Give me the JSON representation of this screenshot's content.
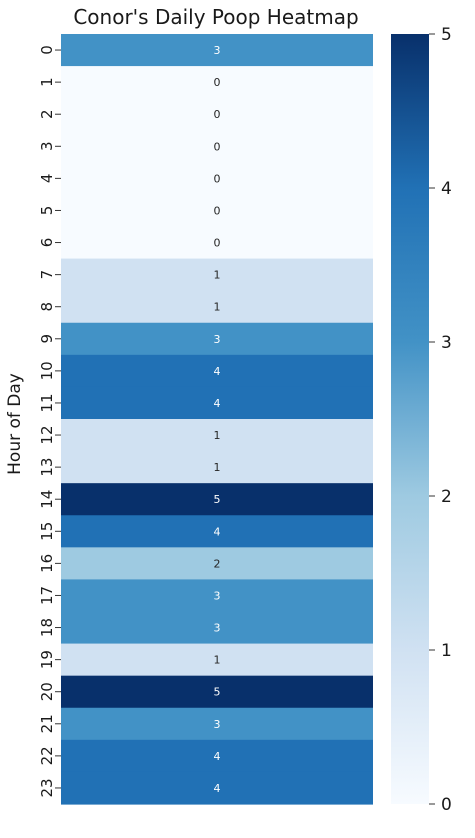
{
  "chart_data": {
    "type": "heatmap",
    "title": "Conor's Daily Poop Heatmap",
    "ylabel": "Hour of Day",
    "xlabel": "",
    "categories": [
      "0",
      "1",
      "2",
      "3",
      "4",
      "5",
      "6",
      "7",
      "8",
      "9",
      "10",
      "11",
      "12",
      "13",
      "14",
      "15",
      "16",
      "17",
      "18",
      "19",
      "20",
      "21",
      "22",
      "23"
    ],
    "values": [
      3,
      0,
      0,
      0,
      0,
      0,
      0,
      1,
      1,
      3,
      4,
      4,
      1,
      1,
      5,
      4,
      2,
      3,
      3,
      1,
      5,
      3,
      4,
      4
    ],
    "colorbar": {
      "min": 0,
      "max": 5,
      "ticks": [
        "0",
        "1",
        "2",
        "3",
        "4",
        "5"
      ],
      "colormap": "Blues"
    }
  }
}
